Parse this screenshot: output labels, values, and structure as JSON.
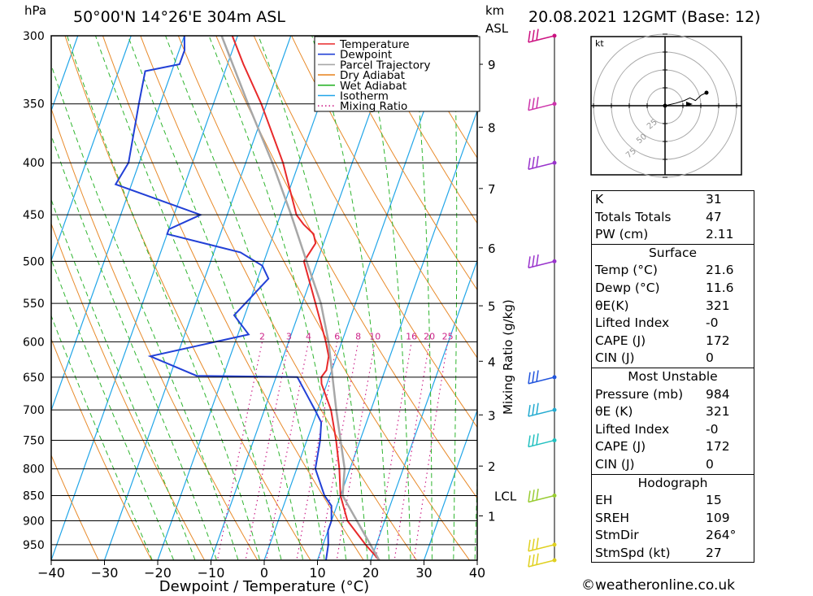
{
  "header": {
    "pressure_unit": "hPa",
    "location": "50°00'N  14°26'E  304m  ASL",
    "height_unit": "km",
    "height_unit2": "ASL",
    "datetime": "20.08.2021  12GMT  (Base: 12)"
  },
  "chart_data": {
    "type": "line",
    "title": "50°00'N  14°26'E  304m  ASL",
    "xlabel": "Dewpoint / Temperature (°C)",
    "ylabel": "hPa",
    "xlim": [
      -40,
      40
    ],
    "ylim": [
      984,
      300
    ],
    "y_scale": "log",
    "x_ticks": [
      -40,
      -30,
      -20,
      -10,
      0,
      10,
      20,
      30,
      40
    ],
    "pressure_levels": [
      300,
      350,
      400,
      450,
      500,
      550,
      600,
      650,
      700,
      750,
      800,
      850,
      900,
      950
    ],
    "right_axis_label": "Mixing Ratio (g/kg)",
    "km_ticks": [
      {
        "km": "1",
        "p": 890
      },
      {
        "km": "2",
        "p": 795
      },
      {
        "km": "3",
        "p": 708
      },
      {
        "km": "4",
        "p": 627
      },
      {
        "km": "5",
        "p": 553
      },
      {
        "km": "6",
        "p": 485
      },
      {
        "km": "7",
        "p": 424
      },
      {
        "km": "8",
        "p": 369
      },
      {
        "km": "9",
        "p": 320
      }
    ],
    "lcl": {
      "label": "LCL",
      "p": 850
    },
    "mixing_ratio_labels": [
      "2",
      "3",
      "4",
      "6",
      "8",
      "10",
      "16",
      "20",
      "25"
    ],
    "legend": [
      "Temperature",
      "Dewpoint",
      "Parcel Trajectory",
      "Dry Adiabat",
      "Wet Adiabat",
      "Isotherm",
      "Mixing Ratio"
    ],
    "series": [
      {
        "name": "Temperature",
        "color": "#e8292a",
        "points": [
          [
            984,
            21.6
          ],
          [
            950,
            18
          ],
          [
            900,
            13
          ],
          [
            850,
            10
          ],
          [
            800,
            8
          ],
          [
            750,
            5.5
          ],
          [
            700,
            2.5
          ],
          [
            660,
            -1
          ],
          [
            650,
            -1.5
          ],
          [
            640,
            -1
          ],
          [
            620,
            -1.5
          ],
          [
            600,
            -3
          ],
          [
            550,
            -7.5
          ],
          [
            500,
            -12.5
          ],
          [
            490,
            -12
          ],
          [
            480,
            -11.5
          ],
          [
            470,
            -12.5
          ],
          [
            460,
            -15
          ],
          [
            450,
            -17
          ],
          [
            400,
            -23
          ],
          [
            350,
            -31
          ],
          [
            320,
            -37
          ],
          [
            300,
            -41
          ]
        ]
      },
      {
        "name": "Dewpoint",
        "color": "#2240d6",
        "points": [
          [
            984,
            11.6
          ],
          [
            950,
            11
          ],
          [
            920,
            10
          ],
          [
            900,
            10
          ],
          [
            870,
            9
          ],
          [
            850,
            7
          ],
          [
            800,
            3.5
          ],
          [
            750,
            2.5
          ],
          [
            720,
            1.5
          ],
          [
            700,
            -0.5
          ],
          [
            650,
            -6
          ],
          [
            648,
            -25
          ],
          [
            620,
            -35
          ],
          [
            590,
            -18
          ],
          [
            565,
            -22
          ],
          [
            520,
            -18
          ],
          [
            505,
            -20
          ],
          [
            490,
            -25
          ],
          [
            470,
            -40
          ],
          [
            465,
            -40
          ],
          [
            450,
            -35
          ],
          [
            420,
            -53
          ],
          [
            400,
            -52
          ],
          [
            350,
            -54
          ],
          [
            325,
            -55
          ],
          [
            320,
            -49
          ],
          [
            310,
            -49
          ],
          [
            300,
            -50
          ]
        ]
      },
      {
        "name": "Parcel Trajectory",
        "color": "#a7a7a7",
        "points": [
          [
            984,
            21.6
          ],
          [
            850,
            10.4
          ],
          [
            800,
            9
          ],
          [
            700,
            3.5
          ],
          [
            600,
            -2.5
          ],
          [
            550,
            -6.5
          ],
          [
            500,
            -12
          ],
          [
            450,
            -18
          ],
          [
            400,
            -25
          ],
          [
            350,
            -33.5
          ],
          [
            300,
            -43
          ]
        ]
      }
    ],
    "wind_barbs": [
      {
        "p": 984,
        "color": "#e0d020"
      },
      {
        "p": 950,
        "color": "#e0d020"
      },
      {
        "p": 850,
        "color": "#99cc33"
      },
      {
        "p": 750,
        "color": "#22c0c0"
      },
      {
        "p": 700,
        "color": "#22aad0"
      },
      {
        "p": 650,
        "color": "#2255dd"
      },
      {
        "p": 500,
        "color": "#9933cc"
      },
      {
        "p": 400,
        "color": "#9933cc"
      },
      {
        "p": 350,
        "color": "#cc33aa"
      },
      {
        "p": 300,
        "color": "#cc1180"
      }
    ],
    "hodograph": {
      "unit": "kt",
      "rings": [
        "25",
        "50",
        "75"
      ],
      "points": [
        [
          0,
          0
        ],
        [
          8,
          2
        ],
        [
          14,
          4
        ],
        [
          18,
          6
        ],
        [
          22,
          4
        ],
        [
          26,
          8
        ],
        [
          30,
          10
        ]
      ]
    }
  },
  "indices": [
    {
      "label": "K",
      "value": "31"
    },
    {
      "label": "Totals Totals",
      "value": "47"
    },
    {
      "label": "PW (cm)",
      "value": "2.11"
    }
  ],
  "surface": {
    "title": "Surface",
    "rows": [
      {
        "label": "Temp (°C)",
        "value": "21.6"
      },
      {
        "label": "Dewp (°C)",
        "value": "11.6"
      },
      {
        "label": "θE(K)",
        "value": "321"
      },
      {
        "label": "Lifted Index",
        "value": "-0"
      },
      {
        "label": "CAPE (J)",
        "value": "172"
      },
      {
        "label": "CIN (J)",
        "value": "0"
      }
    ]
  },
  "most_unstable": {
    "title": "Most Unstable",
    "rows": [
      {
        "label": "Pressure (mb)",
        "value": "984"
      },
      {
        "label": "θE (K)",
        "value": "321"
      },
      {
        "label": "Lifted Index",
        "value": "-0"
      },
      {
        "label": "CAPE (J)",
        "value": "172"
      },
      {
        "label": "CIN (J)",
        "value": "0"
      }
    ]
  },
  "hodograph_table": {
    "title": "Hodograph",
    "rows": [
      {
        "label": "EH",
        "value": "15"
      },
      {
        "label": "SREH",
        "value": "109"
      },
      {
        "label": "StmDir",
        "value": "264°"
      },
      {
        "label": "StmSpd (kt)",
        "value": "27"
      }
    ]
  },
  "footer": {
    "copyright": "©weatheronline.co.uk"
  },
  "colors": {
    "temperature": "#e8292a",
    "dewpoint": "#2240d6",
    "parcel": "#a7a7a7",
    "dry_adiabat": "#e88a2a",
    "wet_adiabat": "#2fb52f",
    "isotherm": "#22a6e8",
    "mixing_ratio": "#cc2288"
  }
}
